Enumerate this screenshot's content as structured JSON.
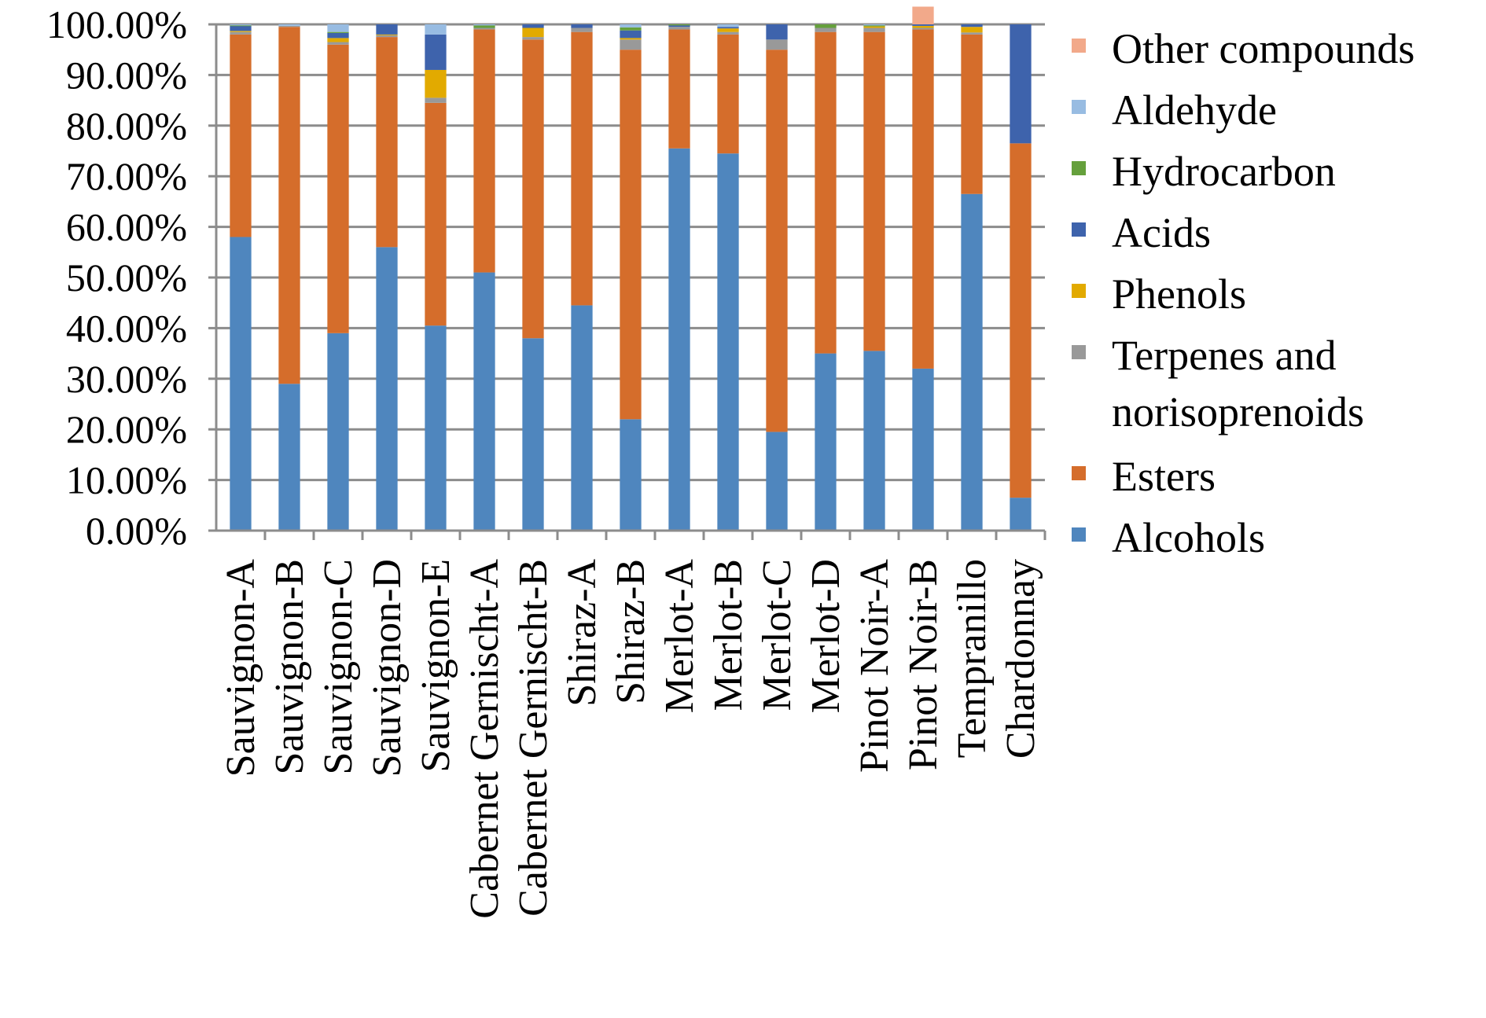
{
  "chart_data": {
    "type": "bar",
    "stacked": true,
    "title": "",
    "xlabel": "",
    "ylabel": "",
    "ylim": [
      0,
      100
    ],
    "yticks": [
      "0.00%",
      "10.00%",
      "20.00%",
      "30.00%",
      "40.00%",
      "50.00%",
      "60.00%",
      "70.00%",
      "80.00%",
      "90.00%",
      "100.00%"
    ],
    "grid": true,
    "legend_position": "right",
    "categories": [
      "Sauvignon-A",
      "Sauvignon-B",
      "Sauvignon-C",
      "Sauvignon-D",
      "Sauvignon-E",
      "Cabernet Gernischt-A",
      "Cabernet Gernischt-B",
      "Shiraz-A",
      "Shiraz-B",
      "Merlot-A",
      "Merlot-B",
      "Merlot-C",
      "Merlot-D",
      "Pinot Noir-A",
      "Pinot Noir-B",
      "Tempranillo",
      "Chardonnay"
    ],
    "series": [
      {
        "name": "Alcohols",
        "color": "#4f86be",
        "values": [
          58,
          29,
          39,
          56,
          40.5,
          51,
          38,
          44.5,
          22,
          75.5,
          74.5,
          19.5,
          35,
          35.5,
          32,
          66.5,
          6.5
        ]
      },
      {
        "name": "Esters",
        "color": "#d56d2b",
        "values": [
          40,
          70.5,
          57,
          41.5,
          44,
          48,
          59,
          54,
          73,
          23.5,
          23.5,
          75.5,
          63.5,
          63,
          67,
          31.5,
          70
        ]
      },
      {
        "name": "Terpenes and norisoprenoids",
        "color": "#999999",
        "values": [
          0.5,
          0.2,
          0.5,
          0.4,
          1,
          0.3,
          0.5,
          0.8,
          2,
          0.5,
          0.5,
          2,
          0.8,
          0.8,
          0.3,
          0.4,
          0
        ]
      },
      {
        "name": "Phenols",
        "color": "#e2aa00",
        "values": [
          0.2,
          0,
          0.8,
          0.1,
          5.5,
          0,
          1.8,
          0,
          0.3,
          0,
          0.7,
          0,
          0,
          0.3,
          0.4,
          1.1,
          0
        ]
      },
      {
        "name": "Acids",
        "color": "#3e63ac",
        "values": [
          1,
          0,
          1,
          2,
          7,
          0,
          0.7,
          0.7,
          1.5,
          0.3,
          0.3,
          3,
          0,
          0,
          0.3,
          0.5,
          23.5
        ]
      },
      {
        "name": "Hydrocarbon",
        "color": "#65a03c",
        "values": [
          0.1,
          0,
          0.2,
          0,
          0,
          0.5,
          0,
          0,
          0.6,
          0.2,
          0,
          0,
          0.7,
          0.2,
          0,
          0,
          0
        ]
      },
      {
        "name": "Aldehyde",
        "color": "#98bce2",
        "values": [
          0.2,
          0.3,
          1.5,
          0,
          2,
          0.2,
          0,
          0,
          0.6,
          0,
          0.5,
          0,
          0,
          0.2,
          0,
          0,
          0
        ]
      },
      {
        "name": "Other compounds",
        "color": "#f2a98a",
        "values": [
          0,
          0,
          0,
          0,
          0,
          0,
          0,
          0,
          0,
          0,
          0,
          0,
          0,
          0,
          3.5,
          0,
          0
        ]
      }
    ],
    "legend_order": [
      "Other compounds",
      "Aldehyde",
      "Hydrocarbon",
      "Acids",
      "Phenols",
      "Terpenes and",
      "norisoprenoids",
      "Esters",
      "Alcohols"
    ]
  }
}
